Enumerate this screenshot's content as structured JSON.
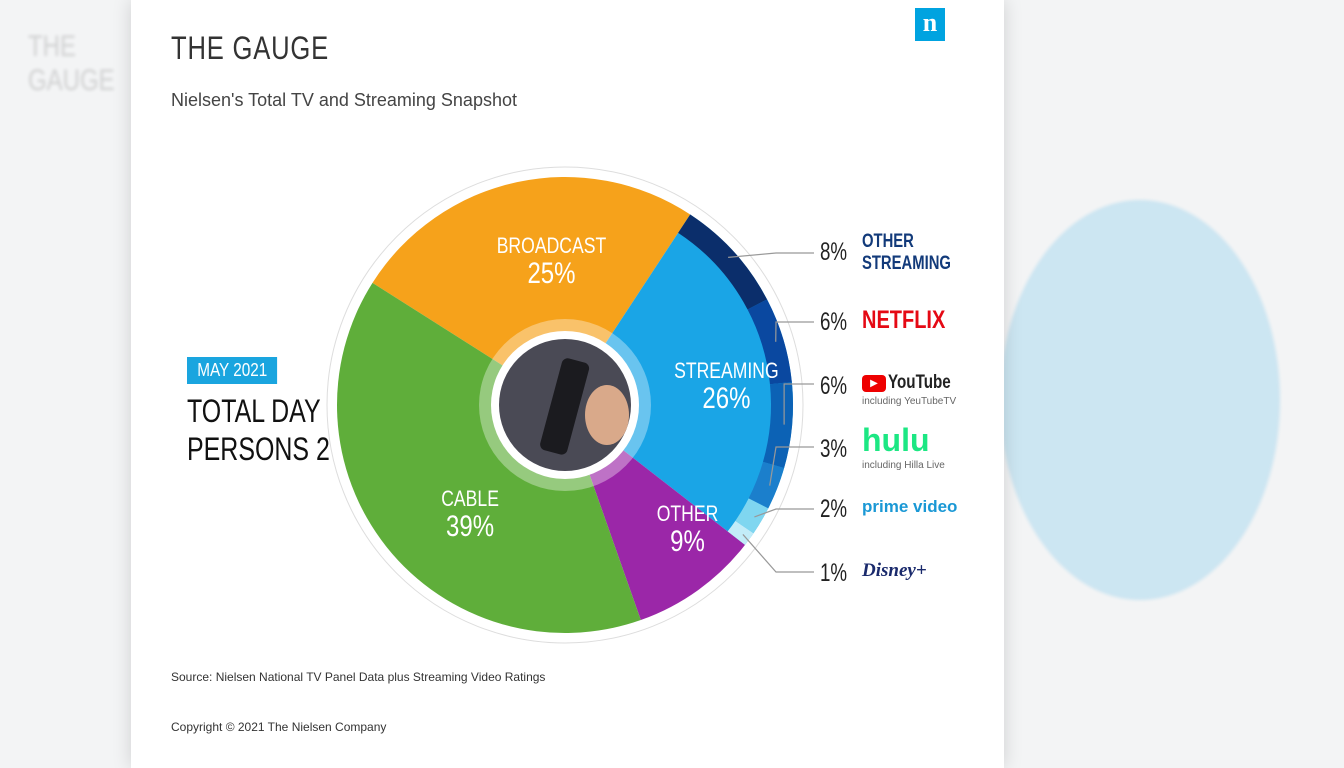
{
  "header": {
    "title": "THE GAUGE",
    "subtitle": "Nielsen's Total TV and Streaming Snapshot",
    "logo": "n"
  },
  "period": {
    "badge": "MAY 2021",
    "line1": "TOTAL DAY",
    "line2": "PERSONS 2+"
  },
  "chart_data": {
    "type": "pie",
    "title": "THE GAUGE",
    "subtitle": "Nielsen's Total TV and Streaming Snapshot",
    "categories": [
      "BROADCAST",
      "STREAMING",
      "OTHER",
      "CABLE"
    ],
    "values": [
      25,
      26,
      9,
      39
    ],
    "labels": [
      "25%",
      "26%",
      "9%",
      "39%"
    ],
    "colors": [
      "#f6a21b",
      "#1aa5e6",
      "#9b27a8",
      "#5fae3a"
    ],
    "streaming_breakdown": [
      {
        "name": "OTHER STREAMING",
        "value": 8,
        "label": "8%",
        "color": "#0b2e6b"
      },
      {
        "name": "NETFLIX",
        "value": 6,
        "label": "6%",
        "color": "#0a48a0"
      },
      {
        "name": "YouTube",
        "sub": "including YeuTubeTV",
        "value": 6,
        "label": "6%",
        "color": "#0c62b5"
      },
      {
        "name": "hulu",
        "sub": "including Hilla Live",
        "value": 3,
        "label": "3%",
        "color": "#1b7fcc"
      },
      {
        "name": "prime video",
        "value": 2,
        "label": "2%",
        "color": "#7fd6f0"
      },
      {
        "name": "Disney+",
        "value": 1,
        "label": "1%",
        "color": "#c2ecf8"
      }
    ]
  },
  "footer": {
    "source": "Source: Nielsen National TV Panel Data plus Streaming Video Ratings",
    "copyright": "Copyright © 2021 The Nielsen Company"
  }
}
